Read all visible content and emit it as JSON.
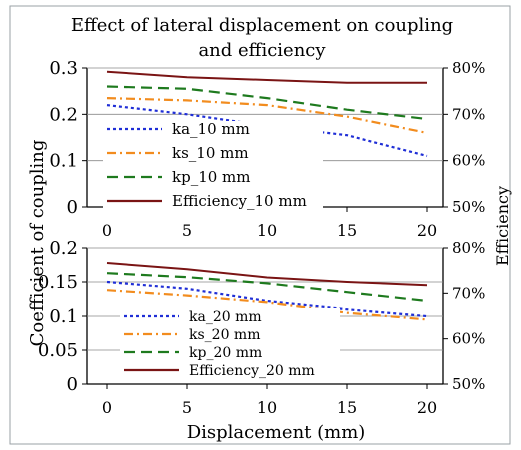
{
  "chart_data": [
    {
      "type": "line",
      "x": [
        0,
        5,
        10,
        15,
        20
      ],
      "x_ticks": [
        "0",
        "5",
        "10",
        "15",
        "20"
      ],
      "y_ticks": [
        "0",
        "0.1",
        "0.2",
        "0.3"
      ],
      "y2_ticks": [
        "50%",
        "60%",
        "70%",
        "80%"
      ],
      "ylim": [
        0,
        0.3
      ],
      "y2lim": [
        50,
        80
      ],
      "series": [
        {
          "name": "ka_10 mm",
          "axis": "left",
          "color": "#1f2ed6",
          "dash": "dot",
          "values": [
            0.22,
            0.2,
            0.175,
            0.155,
            0.11
          ]
        },
        {
          "name": "ks_10 mm",
          "axis": "left",
          "color": "#f28c1e",
          "dash": "dashdot",
          "values": [
            0.235,
            0.23,
            0.22,
            0.195,
            0.16
          ]
        },
        {
          "name": "kp_10 mm",
          "axis": "left",
          "color": "#1e7a1e",
          "dash": "dash",
          "values": [
            0.26,
            0.255,
            0.235,
            0.21,
            0.19
          ]
        },
        {
          "name": "Efficiency_10 mm",
          "axis": "right",
          "color": "#7a1414",
          "dash": "solid",
          "values": [
            79.2,
            78.0,
            77.4,
            76.8,
            76.8
          ]
        }
      ]
    },
    {
      "type": "line",
      "x": [
        0,
        5,
        10,
        15,
        20
      ],
      "x_ticks": [
        "0",
        "5",
        "10",
        "15",
        "20"
      ],
      "y_ticks": [
        "0",
        "0.05",
        "0.1",
        "0.15",
        "0.2"
      ],
      "y2_ticks": [
        "50%",
        "60%",
        "70%",
        "80%"
      ],
      "ylim": [
        0,
        0.2
      ],
      "y2lim": [
        50,
        80
      ],
      "series": [
        {
          "name": "ka_20 mm",
          "axis": "left",
          "color": "#1f2ed6",
          "dash": "dot",
          "values": [
            0.15,
            0.14,
            0.122,
            0.11,
            0.1
          ]
        },
        {
          "name": "ks_20 mm",
          "axis": "left",
          "color": "#f28c1e",
          "dash": "dashdot",
          "values": [
            0.138,
            0.13,
            0.12,
            0.105,
            0.095
          ]
        },
        {
          "name": "kp_20 mm",
          "axis": "left",
          "color": "#1e7a1e",
          "dash": "dash",
          "values": [
            0.163,
            0.157,
            0.148,
            0.135,
            0.122
          ]
        },
        {
          "name": "Efficiency_20 mm",
          "axis": "right",
          "color": "#7a1414",
          "dash": "solid",
          "values": [
            76.7,
            75.3,
            73.5,
            72.5,
            71.8
          ]
        }
      ]
    }
  ],
  "figure": {
    "title_line1": "Effect of lateral displacement on coupling",
    "title_line2": "and efficiency",
    "ylabel_left": "Coefficient of coupling",
    "ylabel_right": "Efficiency",
    "xlabel": "Displacement (mm)"
  }
}
